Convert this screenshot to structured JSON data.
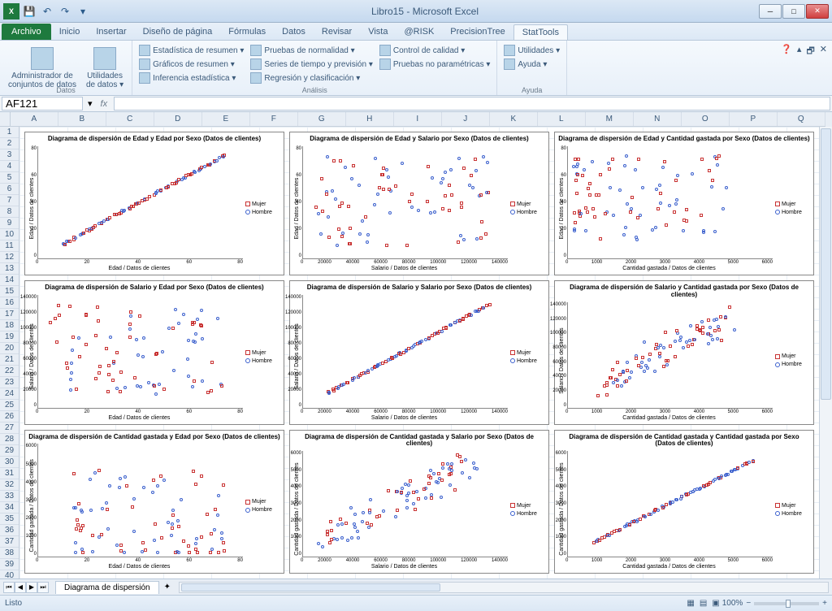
{
  "app": {
    "title": "Libro15 - Microsoft Excel"
  },
  "qat": {
    "save": "💾",
    "undo": "↶",
    "redo": "↷"
  },
  "tabs": {
    "file": "Archivo",
    "items": [
      "Inicio",
      "Insertar",
      "Diseño de página",
      "Fórmulas",
      "Datos",
      "Revisar",
      "Vista",
      "@RISK",
      "PrecisionTree",
      "StatTools"
    ],
    "active": "StatTools"
  },
  "ribbon": {
    "groups": [
      {
        "label": "Datos",
        "big": [
          {
            "label": "Administrador de\nconjuntos de datos"
          },
          {
            "label": "Utilidades\nde datos ▾"
          }
        ]
      },
      {
        "label": "Análisis",
        "cols": [
          [
            {
              "t": "Estadística de resumen ▾"
            },
            {
              "t": "Gráficos de resumen ▾"
            },
            {
              "t": "Inferencia estadística ▾"
            }
          ],
          [
            {
              "t": "Pruebas de normalidad ▾"
            },
            {
              "t": "Series de tiempo y previsión ▾"
            },
            {
              "t": "Regresión y clasificación ▾"
            }
          ],
          [
            {
              "t": "Control de calidad ▾"
            },
            {
              "t": "Pruebas no paramétricas ▾"
            }
          ]
        ]
      },
      {
        "label": "Ayuda",
        "cols": [
          [
            {
              "t": "Utilidades ▾"
            },
            {
              "t": "Ayuda ▾"
            }
          ]
        ]
      }
    ]
  },
  "namebox": "AF121",
  "cols": [
    "A",
    "B",
    "C",
    "D",
    "E",
    "F",
    "G",
    "H",
    "I",
    "J",
    "K",
    "L",
    "M",
    "N",
    "O",
    "P",
    "Q"
  ],
  "rows": 40,
  "sheet_tab": "Diagrama de dispersión",
  "status": "Listo",
  "zoom": "100%",
  "legend": {
    "mujer": "Mujer",
    "hombre": "Hombre"
  },
  "colors": {
    "mujer": "#c83232",
    "hombre": "#3a5fcd",
    "border": "#888888",
    "bg": "#ffffff"
  },
  "charts": [
    {
      "title": "Diagrama de dispersión de Edad y Edad por Sexo (Datos de clientes)",
      "yl": "Edad / Datos de clientes",
      "xl": "Edad / Datos de clientes",
      "xt": [
        "0",
        "20",
        "40",
        "60",
        "80"
      ],
      "yt": [
        "0",
        "20",
        "40",
        "60",
        "80"
      ],
      "type": "diag",
      "xmax": 80,
      "ymax": 80
    },
    {
      "title": "Diagrama de dispersión de Edad y Salario por Sexo (Datos de clientes)",
      "yl": "Edad / Datos de clientes",
      "xl": "Salario / Datos de clientes",
      "xt": [
        "0",
        "20000",
        "40000",
        "60000",
        "80000",
        "100000",
        "120000",
        "140000"
      ],
      "yt": [
        "0",
        "20",
        "40",
        "60",
        "80"
      ],
      "type": "scatter",
      "xmax": 140000,
      "ymax": 80
    },
    {
      "title": "Diagrama de dispersión de Edad y Cantidad gastada por Sexo (Datos de clientes)",
      "yl": "Edad / Datos de clientes",
      "xl": "Cantidad gastada / Datos de clientes",
      "xt": [
        "0",
        "1000",
        "2000",
        "3000",
        "4000",
        "5000",
        "6000"
      ],
      "yt": [
        "0",
        "20",
        "40",
        "60",
        "80"
      ],
      "type": "scatter-left",
      "xmax": 6000,
      "ymax": 80
    },
    {
      "title": "Diagrama de dispersión de Salario y Edad por Sexo (Datos de clientes)",
      "yl": "Salario / Datos de clientes",
      "xl": "Edad / Datos de clientes",
      "xt": [
        "0",
        "20",
        "40",
        "60",
        "80"
      ],
      "yt": [
        "0",
        "20000",
        "40000",
        "60000",
        "80000",
        "100000",
        "120000",
        "140000"
      ],
      "type": "scatter",
      "xmax": 80,
      "ymax": 140000
    },
    {
      "title": "Diagrama de dispersión de Salario y Salario por Sexo (Datos de clientes)",
      "yl": "Salario / Datos de clientes",
      "xl": "Salario / Datos de clientes",
      "xt": [
        "0",
        "20000",
        "40000",
        "60000",
        "80000",
        "100000",
        "120000",
        "140000"
      ],
      "yt": [
        "0",
        "20000",
        "40000",
        "60000",
        "80000",
        "100000",
        "120000",
        "140000"
      ],
      "type": "diag",
      "xmax": 140000,
      "ymax": 140000
    },
    {
      "title": "Diagrama de dispersión de Salario y Cantidad gastada por Sexo (Datos de clientes)",
      "yl": "Salario / Datos de clientes",
      "xl": "Cantidad gastada / Datos de clientes",
      "xt": [
        "0",
        "1000",
        "2000",
        "3000",
        "4000",
        "5000",
        "6000"
      ],
      "yt": [
        "0",
        "20000",
        "40000",
        "60000",
        "80000",
        "100000",
        "120000",
        "140000"
      ],
      "type": "scatter-corr",
      "xmax": 6000,
      "ymax": 140000
    },
    {
      "title": "Diagrama de dispersión de Cantidad gastada y Edad por Sexo (Datos de clientes)",
      "yl": "Cantidad gastada / Datos de clientes",
      "xl": "Edad / Datos de clientes",
      "xt": [
        "0",
        "20",
        "40",
        "60",
        "80"
      ],
      "yt": [
        "0",
        "1000",
        "2000",
        "3000",
        "4000",
        "5000",
        "6000"
      ],
      "type": "scatter-bottom",
      "xmax": 80,
      "ymax": 6000
    },
    {
      "title": "Diagrama de dispersión de Cantidad gastada y Salario por Sexo (Datos de clientes)",
      "yl": "Cantidad gastada / Datos de clientes",
      "xl": "Salario / Datos de clientes",
      "xt": [
        "0",
        "20000",
        "40000",
        "60000",
        "80000",
        "100000",
        "120000",
        "140000"
      ],
      "yt": [
        "0",
        "1000",
        "2000",
        "3000",
        "4000",
        "5000",
        "6000"
      ],
      "type": "scatter-corr",
      "xmax": 140000,
      "ymax": 6000
    },
    {
      "title": "Diagrama de dispersión de Cantidad gastada y Cantidad gastada por Sexo (Datos de clientes)",
      "yl": "Cantidad gastada / Datos de clientes",
      "xl": "Cantidad gastada / Datos de clientes",
      "xt": [
        "0",
        "1000",
        "2000",
        "3000",
        "4000",
        "5000",
        "6000"
      ],
      "yt": [
        "0",
        "1000",
        "2000",
        "3000",
        "4000",
        "5000",
        "6000"
      ],
      "type": "diag",
      "xmax": 6000,
      "ymax": 6000
    }
  ]
}
